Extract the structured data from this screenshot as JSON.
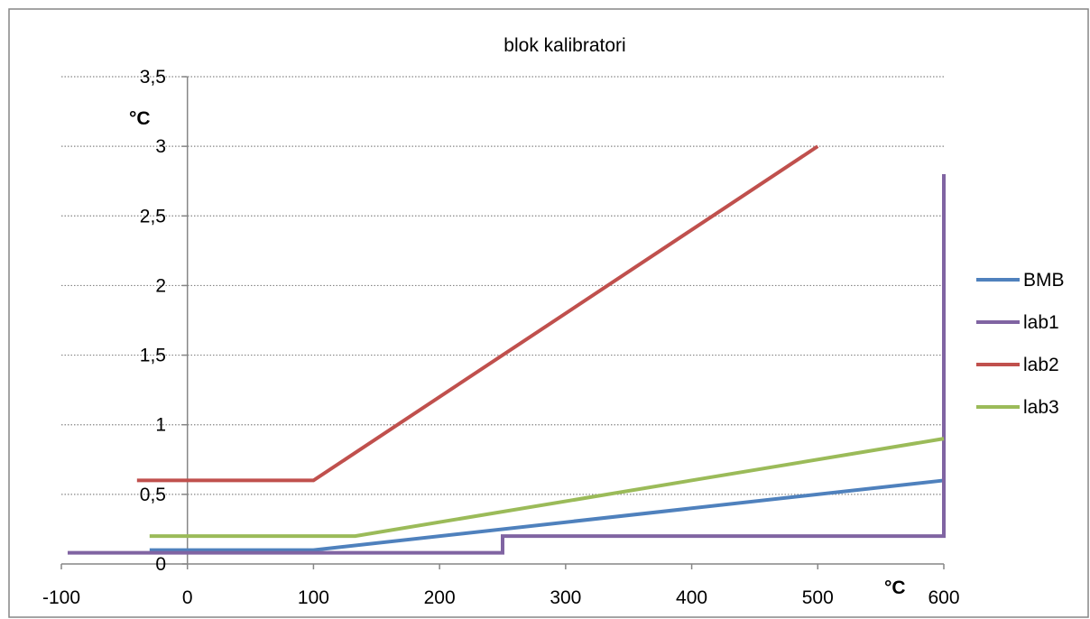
{
  "chart_data": {
    "type": "line",
    "title": "blok kalibratori",
    "xlabel": "°C",
    "ylabel": "°C",
    "xlim": [
      -100,
      600
    ],
    "ylim": [
      0,
      3.5
    ],
    "x_ticks": [
      -100,
      0,
      100,
      200,
      300,
      400,
      500,
      600
    ],
    "x_tick_labels": [
      "-100",
      "0",
      "100",
      "200",
      "300",
      "400",
      "500",
      "600"
    ],
    "y_ticks": [
      0,
      0.5,
      1,
      1.5,
      2,
      2.5,
      3,
      3.5
    ],
    "y_tick_labels": [
      "0",
      "0,5",
      "1",
      "1,5",
      "2",
      "2,5",
      "3",
      "3,5"
    ],
    "grid": "horizontal dotted",
    "legend_position": "right",
    "series": [
      {
        "name": "BMB",
        "color": "#4f81bd",
        "points": [
          [
            -30,
            0.1
          ],
          [
            100,
            0.1
          ],
          [
            600,
            0.6
          ]
        ]
      },
      {
        "name": "lab1",
        "color": "#8064a2",
        "points": [
          [
            -95,
            0.08
          ],
          [
            250,
            0.08
          ],
          [
            250,
            0.2
          ],
          [
            600,
            0.2
          ],
          [
            600,
            2.8
          ]
        ]
      },
      {
        "name": "lab2",
        "color": "#c0504d",
        "points": [
          [
            -40,
            0.6
          ],
          [
            100,
            0.6
          ],
          [
            500,
            3.0
          ]
        ]
      },
      {
        "name": "lab3",
        "color": "#9bbb59",
        "points": [
          [
            -30,
            0.2
          ],
          [
            133,
            0.2
          ],
          [
            600,
            0.9
          ]
        ]
      }
    ]
  }
}
